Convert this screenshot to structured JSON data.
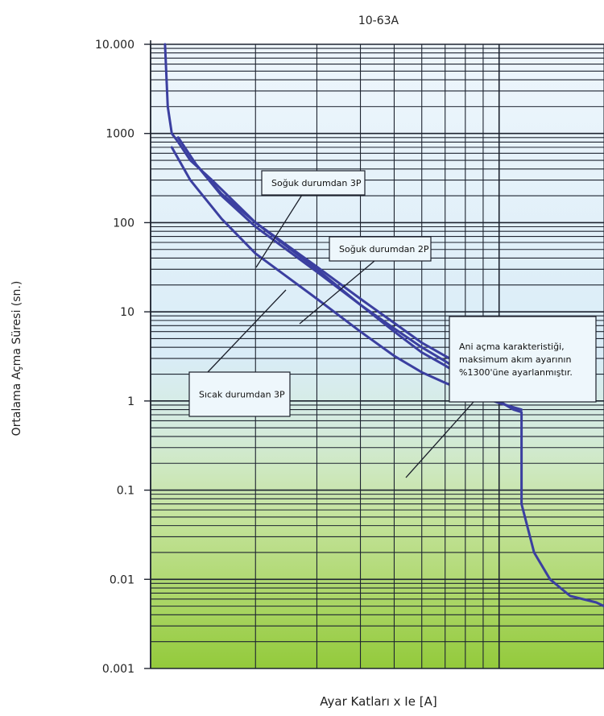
{
  "chart_data": {
    "type": "line",
    "title": "10-63A",
    "xlabel": "Ayar Katları x Ie [A]",
    "ylabel": "Ortalama Açma Süresi (sn.)",
    "yscale": "log",
    "xscale": "log",
    "ylim": [
      0.001,
      10000
    ],
    "xlim": [
      1,
      20
    ],
    "y_ticks": [
      {
        "value": 10000,
        "label": "10.000"
      },
      {
        "value": 1000,
        "label": "1000"
      },
      {
        "value": 100,
        "label": "100"
      },
      {
        "value": 10,
        "label": "10"
      },
      {
        "value": 1,
        "label": "1"
      },
      {
        "value": 0.1,
        "label": "0.1"
      },
      {
        "value": 0.01,
        "label": "0.01"
      },
      {
        "value": 0.001,
        "label": "0.001"
      }
    ],
    "grid": true,
    "series": [
      {
        "x": [
          1.1,
          1.12,
          1.15,
          1.2,
          1.3,
          1.5,
          2.0,
          3.0,
          4.0,
          5.0,
          6.0,
          7.0,
          8.0,
          9.0,
          10.0,
          11.0,
          11.6,
          11.6,
          12.6,
          14.0,
          16.0,
          19.0,
          20.0
        ],
        "y": [
          10000,
          2000,
          1000,
          800,
          500,
          300,
          100,
          30,
          12,
          6,
          3.5,
          2.5,
          1.8,
          1.4,
          1.0,
          0.8,
          0.75,
          0.07,
          0.02,
          0.01,
          0.0065,
          0.0055,
          0.005
        ]
      },
      {
        "x": [
          1.2,
          1.35,
          1.6,
          2.0,
          3.0,
          4.0,
          5.0,
          6.0,
          7.0,
          8.0,
          9.0,
          10.0,
          11.0,
          11.6
        ],
        "y": [
          900,
          450,
          200,
          90,
          28,
          12,
          6.5,
          4.0,
          2.8,
          2.0,
          1.6,
          1.3,
          1.1,
          1.0
        ]
      },
      {
        "x": [
          1.2,
          1.35,
          1.6,
          2.0,
          3.0,
          4.0,
          5.0,
          6.0,
          7.0,
          8.0,
          9.0,
          10.0,
          11.0,
          11.6
        ],
        "y": [
          900,
          450,
          210,
          100,
          32,
          14,
          7.5,
          4.5,
          3.2,
          2.4,
          2.0,
          1.7,
          1.5,
          1.4
        ]
      },
      {
        "x": [
          1.15,
          1.3,
          1.6,
          2.0,
          3.0,
          4.0,
          5.0,
          6.0,
          7.0,
          8.0,
          9.0,
          10.0,
          11.0,
          11.6
        ],
        "y": [
          700,
          300,
          110,
          45,
          14,
          6,
          3.2,
          2.1,
          1.6,
          1.3,
          1.1,
          0.95,
          0.85,
          0.8
        ]
      }
    ],
    "annotations": [
      {
        "lines": [
          "Soğuk durumdan 3P"
        ]
      },
      {
        "lines": [
          "Soğuk durumdan 2P"
        ]
      },
      {
        "lines": [
          "Sıcak durumdan 3P"
        ]
      },
      {
        "lines": [
          "Ani açma karakteristiği,",
          "maksimum akım ayarının",
          "%1300'üne ayarlanmıştır."
        ]
      }
    ],
    "colors": {
      "curve": "#3b3fa0",
      "grid": "#1e2430",
      "bg_top": "#e6f2fb",
      "bg_bottom": "#8cc63f",
      "box_fill": "#eef7fc"
    }
  }
}
